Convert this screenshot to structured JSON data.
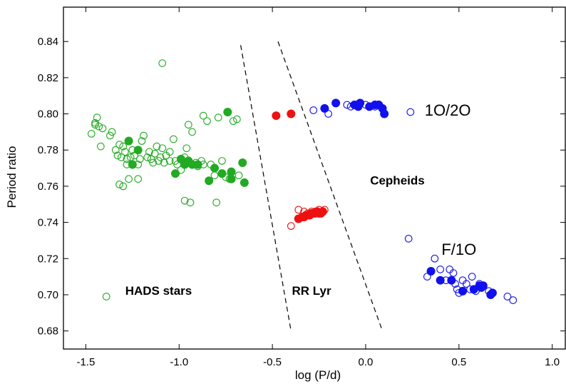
{
  "chart_data": {
    "type": "scatter",
    "title": "",
    "xlabel": "log (P/d)",
    "ylabel": "Period ratio",
    "xlim": [
      -1.62,
      1.07
    ],
    "ylim": [
      0.67,
      0.859
    ],
    "xticks": [
      -1.5,
      -1.0,
      -0.5,
      0.0,
      0.5,
      1.0
    ],
    "xtick_labels": [
      "-1.5",
      "-1.0",
      "-0.5",
      "0.0",
      "0.5",
      "1.0"
    ],
    "yticks": [
      0.68,
      0.7,
      0.72,
      0.74,
      0.76,
      0.78,
      0.8,
      0.82,
      0.84
    ],
    "ytick_labels": [
      "0.68",
      "0.70",
      "0.72",
      "0.74",
      "0.76",
      "0.78",
      "0.80",
      "0.82",
      "0.84"
    ],
    "grid": false,
    "legend": null,
    "colors": {
      "green": "#22aa22",
      "red": "#ee1111",
      "blue": "#1111ee"
    },
    "boundaries": [
      {
        "x": [
          -0.67,
          -0.4
        ],
        "y": [
          0.838,
          0.68
        ]
      },
      {
        "x": [
          -0.47,
          0.09
        ],
        "y": [
          0.84,
          0.68
        ]
      }
    ],
    "annotations": [
      {
        "text": "HADS stars",
        "x": -1.11,
        "y": 0.7,
        "style": "bold"
      },
      {
        "text": "RR Lyr",
        "x": -0.29,
        "y": 0.7,
        "style": "bold"
      },
      {
        "text": "Cepheids",
        "x": 0.17,
        "y": 0.761,
        "style": "bold"
      },
      {
        "text": "1O/2O",
        "x": 0.44,
        "y": 0.799,
        "style": "light"
      },
      {
        "text": "F/1O",
        "x": 0.5,
        "y": 0.722,
        "style": "light"
      }
    ],
    "series": [
      {
        "color": "green",
        "filled": false,
        "points": [
          [
            -1.47,
            0.789
          ],
          [
            -1.45,
            0.794
          ],
          [
            -1.44,
            0.798
          ],
          [
            -1.45,
            0.795
          ],
          [
            -1.43,
            0.793
          ],
          [
            -1.41,
            0.792
          ],
          [
            -1.37,
            0.788
          ],
          [
            -1.36,
            0.79
          ],
          [
            -1.42,
            0.782
          ],
          [
            -1.34,
            0.78
          ],
          [
            -1.33,
            0.777
          ],
          [
            -1.32,
            0.783
          ],
          [
            -1.31,
            0.776
          ],
          [
            -1.3,
            0.782
          ],
          [
            -1.29,
            0.779
          ],
          [
            -1.28,
            0.775
          ],
          [
            -1.32,
            0.761
          ],
          [
            -1.3,
            0.76
          ],
          [
            -1.27,
            0.764
          ],
          [
            -1.25,
            0.78
          ],
          [
            -1.24,
            0.777
          ],
          [
            -1.22,
            0.772
          ],
          [
            -1.21,
            0.775
          ],
          [
            -1.2,
            0.785
          ],
          [
            -1.19,
            0.788
          ],
          [
            -1.17,
            0.776
          ],
          [
            -1.16,
            0.779
          ],
          [
            -1.15,
            0.775
          ],
          [
            -1.13,
            0.778
          ],
          [
            -1.12,
            0.782
          ],
          [
            -1.11,
            0.774
          ],
          [
            -1.1,
            0.776
          ],
          [
            -1.09,
            0.781
          ],
          [
            -1.08,
            0.773
          ],
          [
            -1.07,
            0.777
          ],
          [
            -1.05,
            0.779
          ],
          [
            -1.03,
            0.786
          ],
          [
            -1.02,
            0.774
          ],
          [
            -1.01,
            0.772
          ],
          [
            -0.99,
            0.769
          ],
          [
            -0.97,
            0.776
          ],
          [
            -0.96,
            0.781
          ],
          [
            -0.95,
            0.794
          ],
          [
            -0.93,
            0.79
          ],
          [
            -0.91,
            0.773
          ],
          [
            -0.9,
            0.771
          ],
          [
            -0.88,
            0.774
          ],
          [
            -0.87,
            0.799
          ],
          [
            -0.85,
            0.796
          ],
          [
            -0.83,
            0.772
          ],
          [
            -0.81,
            0.766
          ],
          [
            -0.79,
            0.798
          ],
          [
            -0.77,
            0.774
          ],
          [
            -0.75,
            0.765
          ],
          [
            -0.73,
            0.764
          ],
          [
            -0.71,
            0.796
          ],
          [
            -0.69,
            0.797
          ],
          [
            -0.68,
            0.766
          ],
          [
            -1.09,
            0.828
          ],
          [
            -1.39,
            0.699
          ],
          [
            -1.22,
            0.764
          ],
          [
            -0.97,
            0.752
          ],
          [
            -0.94,
            0.751
          ],
          [
            -0.8,
            0.751
          ],
          [
            -1.28,
            0.772
          ],
          [
            -1.14,
            0.773
          ],
          [
            -1.26,
            0.776
          ],
          [
            -1.05,
            0.774
          ],
          [
            -0.87,
            0.772
          ]
        ]
      },
      {
        "color": "green",
        "filled": true,
        "points": [
          [
            -1.27,
            0.785
          ],
          [
            -1.25,
            0.772
          ],
          [
            -1.22,
            0.78
          ],
          [
            -1.02,
            0.767
          ],
          [
            -0.99,
            0.775
          ],
          [
            -0.97,
            0.772
          ],
          [
            -0.95,
            0.774
          ],
          [
            -0.93,
            0.772
          ],
          [
            -0.9,
            0.772
          ],
          [
            -0.84,
            0.763
          ],
          [
            -0.81,
            0.77
          ],
          [
            -0.77,
            0.767
          ],
          [
            -0.74,
            0.801
          ],
          [
            -0.72,
            0.768
          ],
          [
            -0.72,
            0.764
          ],
          [
            -0.66,
            0.773
          ],
          [
            -0.65,
            0.762
          ]
        ]
      },
      {
        "color": "red",
        "filled": false,
        "points": [
          [
            -0.4,
            0.738
          ],
          [
            -0.36,
            0.747
          ],
          [
            -0.33,
            0.746
          ],
          [
            -0.31,
            0.745
          ],
          [
            -0.29,
            0.746
          ],
          [
            -0.27,
            0.746
          ],
          [
            -0.25,
            0.747
          ],
          [
            -0.23,
            0.746
          ],
          [
            -0.22,
            0.747
          ]
        ]
      },
      {
        "color": "red",
        "filled": true,
        "points": [
          [
            -0.48,
            0.799
          ],
          [
            -0.4,
            0.8
          ],
          [
            -0.36,
            0.742
          ],
          [
            -0.34,
            0.743
          ],
          [
            -0.33,
            0.743
          ],
          [
            -0.32,
            0.744
          ],
          [
            -0.31,
            0.744
          ],
          [
            -0.3,
            0.744
          ],
          [
            -0.29,
            0.745
          ],
          [
            -0.28,
            0.745
          ],
          [
            -0.27,
            0.745
          ],
          [
            -0.26,
            0.746
          ],
          [
            -0.25,
            0.745
          ],
          [
            -0.24,
            0.745
          ],
          [
            -0.23,
            0.746
          ]
        ]
      },
      {
        "color": "blue",
        "filled": false,
        "points": [
          [
            -0.28,
            0.802
          ],
          [
            -0.2,
            0.8
          ],
          [
            -0.1,
            0.805
          ],
          [
            -0.08,
            0.804
          ],
          [
            0.0,
            0.805
          ],
          [
            0.05,
            0.804
          ],
          [
            0.24,
            0.801
          ],
          [
            0.23,
            0.731
          ],
          [
            0.33,
            0.71
          ],
          [
            0.37,
            0.72
          ],
          [
            0.4,
            0.714
          ],
          [
            0.43,
            0.708
          ],
          [
            0.45,
            0.714
          ],
          [
            0.47,
            0.712
          ],
          [
            0.48,
            0.706
          ],
          [
            0.49,
            0.703
          ],
          [
            0.5,
            0.701
          ],
          [
            0.52,
            0.708
          ],
          [
            0.54,
            0.706
          ],
          [
            0.56,
            0.703
          ],
          [
            0.57,
            0.71
          ],
          [
            0.59,
            0.702
          ],
          [
            0.61,
            0.706
          ],
          [
            0.66,
            0.702
          ],
          [
            0.76,
            0.699
          ],
          [
            0.79,
            0.697
          ]
        ]
      },
      {
        "color": "blue",
        "filled": true,
        "points": [
          [
            -0.22,
            0.803
          ],
          [
            -0.16,
            0.806
          ],
          [
            -0.06,
            0.805
          ],
          [
            -0.04,
            0.804
          ],
          [
            -0.03,
            0.806
          ],
          [
            0.02,
            0.804
          ],
          [
            0.05,
            0.805
          ],
          [
            0.07,
            0.805
          ],
          [
            0.09,
            0.803
          ],
          [
            0.1,
            0.8
          ],
          [
            0.35,
            0.713
          ],
          [
            0.4,
            0.708
          ],
          [
            0.46,
            0.708
          ],
          [
            0.52,
            0.702
          ],
          [
            0.58,
            0.703
          ],
          [
            0.61,
            0.705
          ],
          [
            0.62,
            0.704
          ],
          [
            0.63,
            0.705
          ],
          [
            0.67,
            0.7
          ],
          [
            0.68,
            0.701
          ]
        ]
      }
    ]
  }
}
